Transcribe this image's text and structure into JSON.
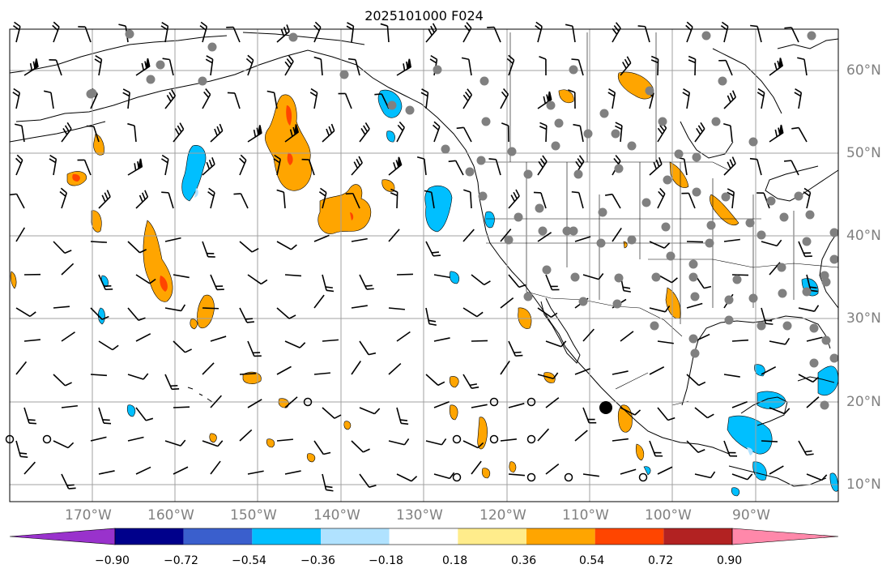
{
  "title": "2025101000 F024",
  "map": {
    "lon_labels": [
      "170°W",
      "160°W",
      "150°W",
      "140°W",
      "130°W",
      "120°W",
      "110°W",
      "100°W",
      "90°W"
    ],
    "lat_labels": [
      "60°N",
      "50°N",
      "40°N",
      "30°N",
      "20°N",
      "10°N"
    ],
    "gridline_color": "#a0a0a0",
    "coastline_color": "#000000",
    "station_marker_color": "#808080",
    "wind_barb_color": "#000000"
  },
  "colorbar": {
    "tick_labels": [
      "−0.90",
      "−0.72",
      "−0.54",
      "−0.36",
      "−0.18",
      "0.18",
      "0.36",
      "0.54",
      "0.72",
      "0.90"
    ],
    "colors": [
      "#9932cc",
      "#00008b",
      "#3a5fcd",
      "#00bfff",
      "#b0e2ff",
      "#ffffff",
      "#ffec8b",
      "#ffa500",
      "#ff4500",
      "#b22222",
      "#ff88aa"
    ],
    "extend": "both"
  },
  "chart_data": {
    "type": "heatmap",
    "title": "2025101000 F024",
    "x_ticks": [
      "170°W",
      "160°W",
      "150°W",
      "140°W",
      "130°W",
      "120°W",
      "110°W",
      "100°W",
      "90°W"
    ],
    "y_ticks": [
      "60°N",
      "50°N",
      "40°N",
      "30°N",
      "20°N",
      "10°N"
    ],
    "xlim": [
      -180,
      -80
    ],
    "ylim": [
      8,
      65
    ],
    "grid": true,
    "legend": "colorbar-bottom",
    "levels": [
      -0.9,
      -0.72,
      -0.54,
      -0.36,
      -0.18,
      0.18,
      0.36,
      0.54,
      0.72,
      0.9
    ]
  }
}
